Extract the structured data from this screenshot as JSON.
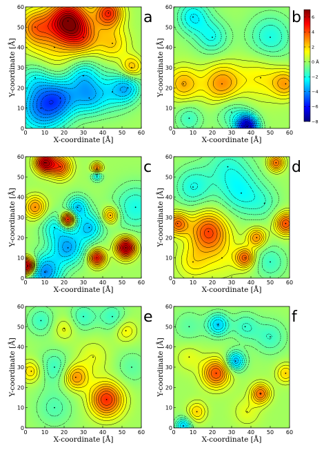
{
  "colors": {
    "colormap": [
      "#00007f",
      "#0000ff",
      "#007fff",
      "#00ffff",
      "#7fff7f",
      "#ffff00",
      "#ff7f00",
      "#ff0000",
      "#7f0000"
    ],
    "contour_line": "#000000",
    "background": "#ffffff"
  },
  "chart_data": [
    {
      "panel": "a",
      "type": "heatmap",
      "contour": true,
      "xlabel": "X-coordinate [Å]",
      "ylabel": "Y-coordinate [Å]",
      "xlim": [
        0,
        60
      ],
      "ylim": [
        0,
        60
      ],
      "xticks": [
        0,
        10,
        20,
        30,
        40,
        50,
        60
      ],
      "yticks": [
        0,
        10,
        20,
        30,
        40,
        50,
        60
      ],
      "features": [
        {
          "x": 22,
          "y": 53,
          "value": 6.5,
          "spread": 7
        },
        {
          "x": 43,
          "y": 57,
          "value": 4.5,
          "spread": 5
        },
        {
          "x": 5,
          "y": 50,
          "value": 3,
          "spread": 6
        },
        {
          "x": 30,
          "y": 45,
          "value": 2.5,
          "spread": 6
        },
        {
          "x": 55,
          "y": 30,
          "value": 2.5,
          "spread": 4
        },
        {
          "x": 45,
          "y": 42,
          "value": 2,
          "spread": 6
        },
        {
          "x": 15,
          "y": 40,
          "value": 1.5,
          "spread": 10
        },
        {
          "x": 8,
          "y": 10,
          "value": -4,
          "spread": 9
        },
        {
          "x": 18,
          "y": 15,
          "value": -3,
          "spread": 7
        },
        {
          "x": 33,
          "y": 15,
          "value": -2.5,
          "spread": 6
        },
        {
          "x": 30,
          "y": 26,
          "value": -2.5,
          "spread": 6
        },
        {
          "x": 53,
          "y": 20,
          "value": -2.5,
          "spread": 5
        },
        {
          "x": 45,
          "y": 18,
          "value": -2,
          "spread": 7
        },
        {
          "x": 5,
          "y": 25,
          "value": -1.5,
          "spread": 6
        }
      ]
    },
    {
      "panel": "b",
      "type": "heatmap",
      "contour": true,
      "xlabel": "X-coordinate [Å]",
      "ylabel": "Y-coordinate [Å]",
      "xlim": [
        0,
        60
      ],
      "ylim": [
        0,
        60
      ],
      "xticks": [
        0,
        10,
        20,
        30,
        40,
        50,
        60
      ],
      "yticks": [
        0,
        10,
        20,
        30,
        40,
        50,
        60
      ],
      "features": [
        {
          "x": 25,
          "y": 22,
          "value": 3,
          "spread": 7
        },
        {
          "x": 5,
          "y": 22,
          "value": 2.5,
          "spread": 6
        },
        {
          "x": 58,
          "y": 22,
          "value": 2.5,
          "spread": 5
        },
        {
          "x": 45,
          "y": 25,
          "value": 1.5,
          "spread": 8
        },
        {
          "x": 38,
          "y": 1,
          "value": -7,
          "spread": 4
        },
        {
          "x": 10,
          "y": 55,
          "value": -2.5,
          "spread": 6
        },
        {
          "x": 20,
          "y": 45,
          "value": -2,
          "spread": 6
        },
        {
          "x": 50,
          "y": 45,
          "value": -2,
          "spread": 8
        },
        {
          "x": 30,
          "y": 8,
          "value": -1.5,
          "spread": 6
        },
        {
          "x": 8,
          "y": 5,
          "value": -1.5,
          "spread": 5
        }
      ]
    },
    {
      "panel": "c",
      "type": "heatmap",
      "contour": true,
      "xlabel": "X-coordinate [Å]",
      "ylabel": "Y-coordinate [Å]",
      "xlim": [
        0,
        60
      ],
      "ylim": [
        0,
        60
      ],
      "xticks": [
        0,
        10,
        20,
        30,
        40,
        50,
        60
      ],
      "yticks": [
        0,
        10,
        20,
        30,
        40,
        50,
        60
      ],
      "features": [
        {
          "x": 1,
          "y": 6,
          "value": 7,
          "spread": 3
        },
        {
          "x": 10,
          "y": 57,
          "value": 6,
          "spread": 3.5
        },
        {
          "x": 22,
          "y": 29,
          "value": 6,
          "spread": 2.5
        },
        {
          "x": 52,
          "y": 15,
          "value": 6.5,
          "spread": 3.5
        },
        {
          "x": 37,
          "y": 10,
          "value": 5,
          "spread": 3
        },
        {
          "x": 18,
          "y": 55,
          "value": 4,
          "spread": 4
        },
        {
          "x": 37,
          "y": 51,
          "value": -3,
          "spread": 2
        },
        {
          "x": 37,
          "y": 54,
          "value": 4,
          "spread": 2
        },
        {
          "x": 5,
          "y": 35,
          "value": 3,
          "spread": 4
        },
        {
          "x": 44,
          "y": 31,
          "value": 3,
          "spread": 3
        },
        {
          "x": 10,
          "y": 3,
          "value": -4,
          "spread": 6
        },
        {
          "x": 22,
          "y": 15,
          "value": -3.5,
          "spread": 6
        },
        {
          "x": 27,
          "y": 35,
          "value": -3,
          "spread": 4
        },
        {
          "x": 33,
          "y": 25,
          "value": -3,
          "spread": 5
        },
        {
          "x": 57,
          "y": 35,
          "value": -2,
          "spread": 8
        },
        {
          "x": 15,
          "y": 25,
          "value": -2,
          "spread": 5
        }
      ]
    },
    {
      "panel": "d",
      "type": "heatmap",
      "contour": true,
      "xlabel": "X-coordinate [Å]",
      "ylabel": "Y-coordinate [Å]",
      "xlim": [
        0,
        60
      ],
      "ylim": [
        0,
        60
      ],
      "xticks": [
        0,
        10,
        20,
        30,
        40,
        50,
        60
      ],
      "yticks": [
        0,
        10,
        20,
        30,
        40,
        50,
        60
      ],
      "features": [
        {
          "x": 18,
          "y": 23,
          "value": 4,
          "spread": 7
        },
        {
          "x": 2,
          "y": 27,
          "value": 3.5,
          "spread": 4
        },
        {
          "x": 58,
          "y": 27,
          "value": 4,
          "spread": 4
        },
        {
          "x": 37,
          "y": 10,
          "value": 3.5,
          "spread": 3.5
        },
        {
          "x": 43,
          "y": 20,
          "value": 3,
          "spread": 3.5
        },
        {
          "x": 53,
          "y": 57,
          "value": 3.5,
          "spread": 3
        },
        {
          "x": 10,
          "y": 8,
          "value": 1.5,
          "spread": 6
        },
        {
          "x": 25,
          "y": 10,
          "value": 1,
          "spread": 8
        },
        {
          "x": 10,
          "y": 45,
          "value": -2,
          "spread": 7
        },
        {
          "x": 35,
          "y": 42,
          "value": -2,
          "spread": 8
        },
        {
          "x": 28,
          "y": 55,
          "value": -1.5,
          "spread": 8
        },
        {
          "x": 50,
          "y": 8,
          "value": -1.5,
          "spread": 6
        },
        {
          "x": 47,
          "y": 37,
          "value": -1,
          "spread": 6
        }
      ]
    },
    {
      "panel": "e",
      "type": "heatmap",
      "contour": true,
      "xlabel": "X-coordinate [Å]",
      "ylabel": "Y-coordinate [Å]",
      "xlim": [
        0,
        60
      ],
      "ylim": [
        0,
        60
      ],
      "xticks": [
        0,
        10,
        20,
        30,
        40,
        50,
        60
      ],
      "yticks": [
        0,
        10,
        20,
        30,
        40,
        50,
        60
      ],
      "features": [
        {
          "x": 42,
          "y": 14,
          "value": 4.5,
          "spread": 6
        },
        {
          "x": 26,
          "y": 25,
          "value": 3,
          "spread": 4.5
        },
        {
          "x": 3,
          "y": 28,
          "value": 2,
          "spread": 4
        },
        {
          "x": 52,
          "y": 48,
          "value": 1.5,
          "spread": 4
        },
        {
          "x": 20,
          "y": 49,
          "value": 1.2,
          "spread": 4
        },
        {
          "x": 35,
          "y": 35,
          "value": 1,
          "spread": 6
        },
        {
          "x": 15,
          "y": 30,
          "value": -1.5,
          "spread": 6
        },
        {
          "x": 8,
          "y": 53,
          "value": -1.5,
          "spread": 5
        },
        {
          "x": 30,
          "y": 55,
          "value": -1.5,
          "spread": 5
        },
        {
          "x": 45,
          "y": 55,
          "value": -1.5,
          "spread": 5
        },
        {
          "x": 15,
          "y": 10,
          "value": -1.2,
          "spread": 7
        },
        {
          "x": 55,
          "y": 30,
          "value": -1,
          "spread": 6
        }
      ]
    },
    {
      "panel": "f",
      "type": "heatmap",
      "contour": true,
      "xlabel": "X-coordinate [Å]",
      "ylabel": "Y-coordinate [Å]",
      "xlim": [
        0,
        60
      ],
      "ylim": [
        0,
        60
      ],
      "xticks": [
        0,
        10,
        20,
        30,
        40,
        50,
        60
      ],
      "yticks": [
        0,
        10,
        20,
        30,
        40,
        50,
        60
      ],
      "features": [
        {
          "x": 22,
          "y": 27,
          "value": 4,
          "spread": 5
        },
        {
          "x": 45,
          "y": 17,
          "value": 3.5,
          "spread": 3.5
        },
        {
          "x": 58,
          "y": 27,
          "value": 2,
          "spread": 3.5
        },
        {
          "x": 12,
          "y": 8,
          "value": 2,
          "spread": 3.5
        },
        {
          "x": 8,
          "y": 35,
          "value": 1,
          "spread": 5
        },
        {
          "x": 38,
          "y": 8,
          "value": 1,
          "spread": 5
        },
        {
          "x": 32,
          "y": 33,
          "value": -3.5,
          "spread": 3.5
        },
        {
          "x": 23,
          "y": 51,
          "value": -3,
          "spread": 4
        },
        {
          "x": 5,
          "y": 1,
          "value": -3,
          "spread": 3
        },
        {
          "x": 50,
          "y": 45,
          "value": -1.5,
          "spread": 6
        },
        {
          "x": 37,
          "y": 50,
          "value": -1.5,
          "spread": 5
        },
        {
          "x": 8,
          "y": 50,
          "value": -1,
          "spread": 6
        }
      ]
    }
  ],
  "colorbar": {
    "range": [
      -8,
      7
    ],
    "ticks": [
      {
        "value": 6,
        "label": "6"
      },
      {
        "value": 4,
        "label": "4"
      },
      {
        "value": 2,
        "label": "2"
      },
      {
        "value": 0,
        "label": "0 Å"
      },
      {
        "value": -2,
        "label": "−2"
      },
      {
        "value": -4,
        "label": "−4"
      },
      {
        "value": -6,
        "label": "−6"
      },
      {
        "value": -8,
        "label": "−8"
      }
    ]
  }
}
